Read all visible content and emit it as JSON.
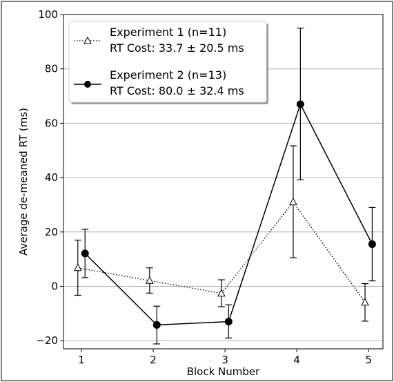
{
  "chart_data": {
    "type": "line",
    "xlabel": "Block Number",
    "ylabel": "Average de-meaned RT (ms)",
    "xlim": [
      0.75,
      5.2
    ],
    "ylim": [
      -23,
      100
    ],
    "xticks": [
      1,
      2,
      3,
      4,
      5
    ],
    "yticks": [
      -20,
      0,
      20,
      40,
      60,
      80,
      100
    ],
    "grid": "horizontal",
    "legend_position": "top-left",
    "colors": {
      "line": "#000000",
      "grid": "#b0b0b0",
      "open_marker_fill": "#ffffff"
    },
    "series": [
      {
        "name": "Experiment 1 (n=11)",
        "subtitle": "RT Cost: 33.7 ± 20.5 ms",
        "line_style": "dotted",
        "marker": "open-triangle",
        "x": [
          0.95,
          1.95,
          2.95,
          3.95,
          4.95
        ],
        "y": [
          6.8,
          2.1,
          -2.6,
          31.0,
          -5.9
        ],
        "err_low": [
          -3.3,
          -2.5,
          -7.5,
          10.5,
          -12.8
        ],
        "err_high": [
          17.0,
          6.8,
          2.4,
          51.7,
          1.0
        ]
      },
      {
        "name": "Experiment 2 (n=13)",
        "subtitle": "RT Cost: 80.0 ± 32.4 ms",
        "line_style": "solid",
        "marker": "filled-circle",
        "x": [
          1.05,
          2.05,
          3.05,
          4.05,
          5.05
        ],
        "y": [
          12.1,
          -14.2,
          -13.0,
          67.0,
          15.5
        ],
        "err_low": [
          3.2,
          -21.2,
          -19.0,
          39.2,
          2.0
        ],
        "err_high": [
          21.0,
          -7.3,
          -6.8,
          95.0,
          29.0
        ]
      }
    ]
  }
}
